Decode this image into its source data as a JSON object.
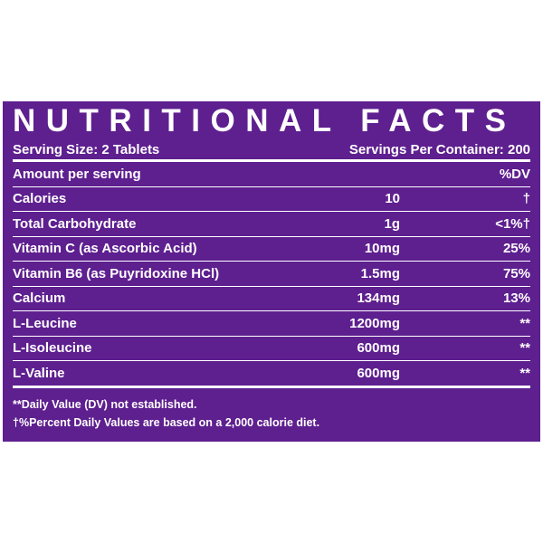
{
  "label": {
    "title": "NUTRITIONAL FACTS",
    "serving_size": "Serving Size: 2 Tablets",
    "servings_per_container": "Servings Per Container: 200",
    "header": {
      "name": "Amount per serving",
      "dv": "%DV"
    },
    "rows": [
      [
        "Calories",
        "10",
        "†"
      ],
      [
        "Total Carbohydrate",
        "1g",
        "<1%†"
      ],
      [
        "Vitamin C (as Ascorbic Acid)",
        "10mg",
        "25%"
      ],
      [
        "Vitamin B6 (as Puyridoxine HCl)",
        "1.5mg",
        "75%"
      ],
      [
        "Calcium",
        "134mg",
        "13%"
      ],
      [
        "L-Leucine",
        "1200mg",
        "**"
      ],
      [
        "L-Isoleucine",
        "600mg",
        "**"
      ],
      [
        "L-Valine",
        "600mg",
        "**"
      ]
    ],
    "footnotes": [
      "**Daily Value (DV) not established.",
      "†%Percent Daily Values are based on a 2,000 calorie diet."
    ]
  }
}
